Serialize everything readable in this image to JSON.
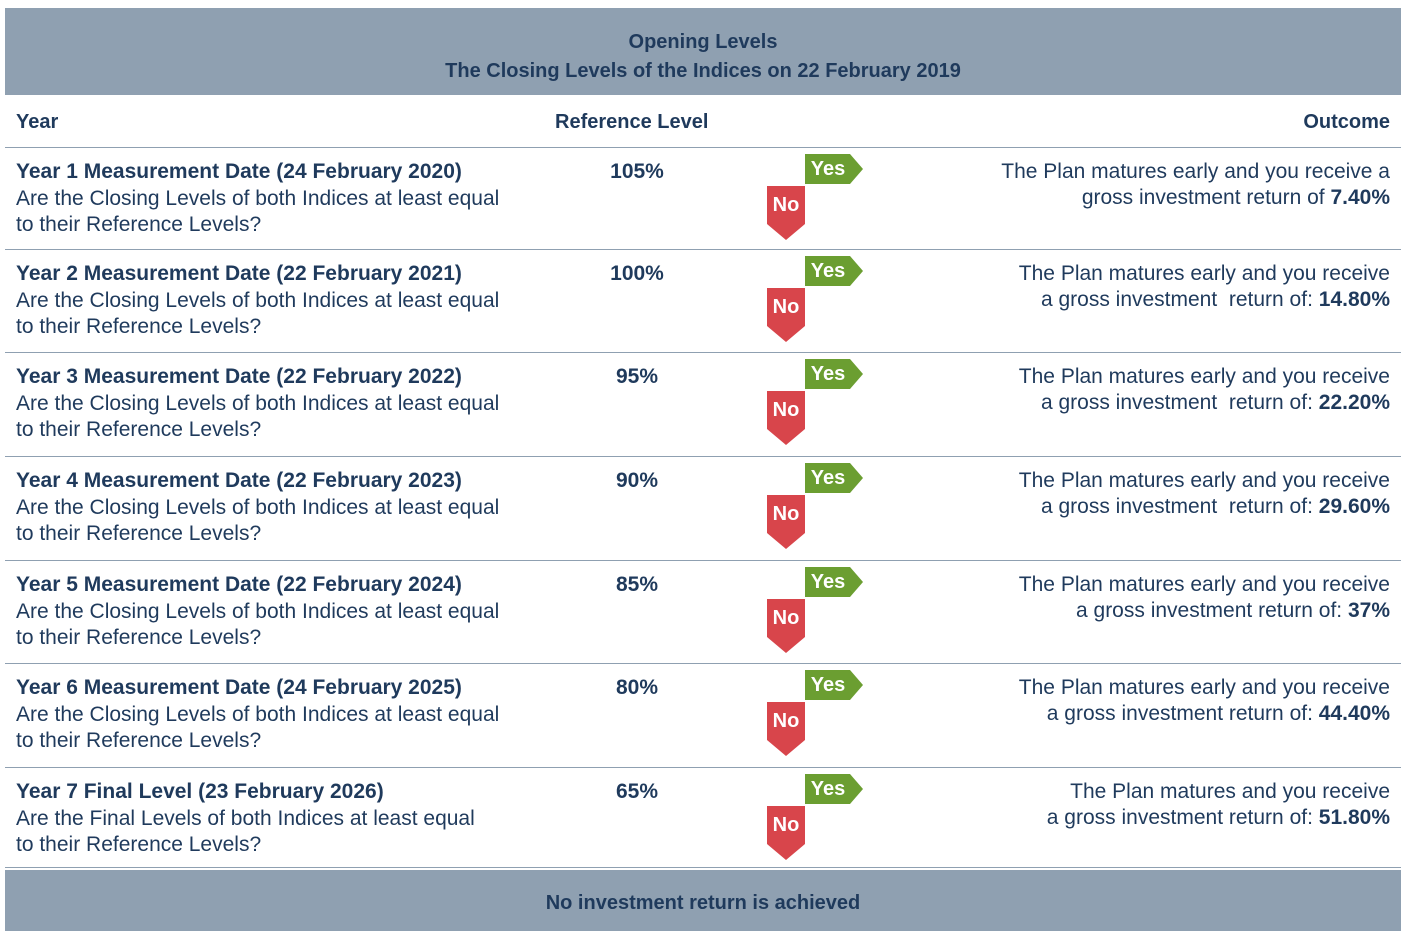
{
  "header": {
    "title": "Opening Levels",
    "subtitle": "The Closing Levels of the Indices on 22 February 2019"
  },
  "columns": [
    "Year",
    "Reference Level",
    "Outcome"
  ],
  "rows": [
    {
      "title": "Year 1 Measurement Date (24 February 2020)",
      "question": [
        "Are the Closing Levels of both Indices at least equal",
        "to their Reference Levels?"
      ],
      "reference_level": "105%",
      "yes": "Yes",
      "no": "No",
      "outcome": [
        "The Plan matures early and you receive a",
        "gross investment return of"
      ],
      "return": "7.40%"
    },
    {
      "title": "Year 2 Measurement Date (22 February 2021)",
      "question": [
        "Are the Closing Levels of both Indices at least equal",
        "to their Reference Levels?"
      ],
      "reference_level": "100%",
      "yes": "Yes",
      "no": "No",
      "outcome": [
        "The Plan matures early and you receive",
        "a gross investment  return of:"
      ],
      "return": "14.80%"
    },
    {
      "title": "Year 3 Measurement Date (22 February 2022)",
      "question": [
        "Are the Closing Levels of both Indices at least equal",
        "to their Reference Levels?"
      ],
      "reference_level": "95%",
      "yes": "Yes",
      "no": "No",
      "outcome": [
        "The Plan matures early and you receive",
        "a gross investment  return of:"
      ],
      "return": "22.20%"
    },
    {
      "title": "Year 4 Measurement Date (22 February 2023)",
      "question": [
        "Are the Closing Levels of both Indices at least equal",
        "to their Reference Levels?"
      ],
      "reference_level": "90%",
      "yes": "Yes",
      "no": "No",
      "outcome": [
        "The Plan matures early and you receive",
        "a gross investment  return of:"
      ],
      "return": "29.60%"
    },
    {
      "title": "Year 5 Measurement Date (22 February 2024)",
      "question": [
        "Are the Closing Levels of both Indices at least equal",
        "to their Reference Levels?"
      ],
      "reference_level": "85%",
      "yes": "Yes",
      "no": "No",
      "outcome": [
        "The Plan matures early and you receive",
        "a gross investment return of:"
      ],
      "return": "37%"
    },
    {
      "title": "Year 6 Measurement Date (24 February 2025)",
      "question": [
        "Are the Closing Levels of both Indices at least equal",
        "to their Reference Levels?"
      ],
      "reference_level": "80%",
      "yes": "Yes",
      "no": "No",
      "outcome": [
        "The Plan matures early and you receive",
        "a gross investment return of:"
      ],
      "return": "44.40%"
    },
    {
      "title": "Year 7 Final Level (23 February 2026)",
      "question": [
        "Are the Final Levels of both Indices at least equal",
        "to their Reference Levels?"
      ],
      "reference_level": "65%",
      "yes": "Yes",
      "no": "No",
      "outcome": [
        "The Plan matures and you receive",
        "a gross investment return of:"
      ],
      "return": "51.80%"
    }
  ],
  "footer": "No investment return is achieved"
}
